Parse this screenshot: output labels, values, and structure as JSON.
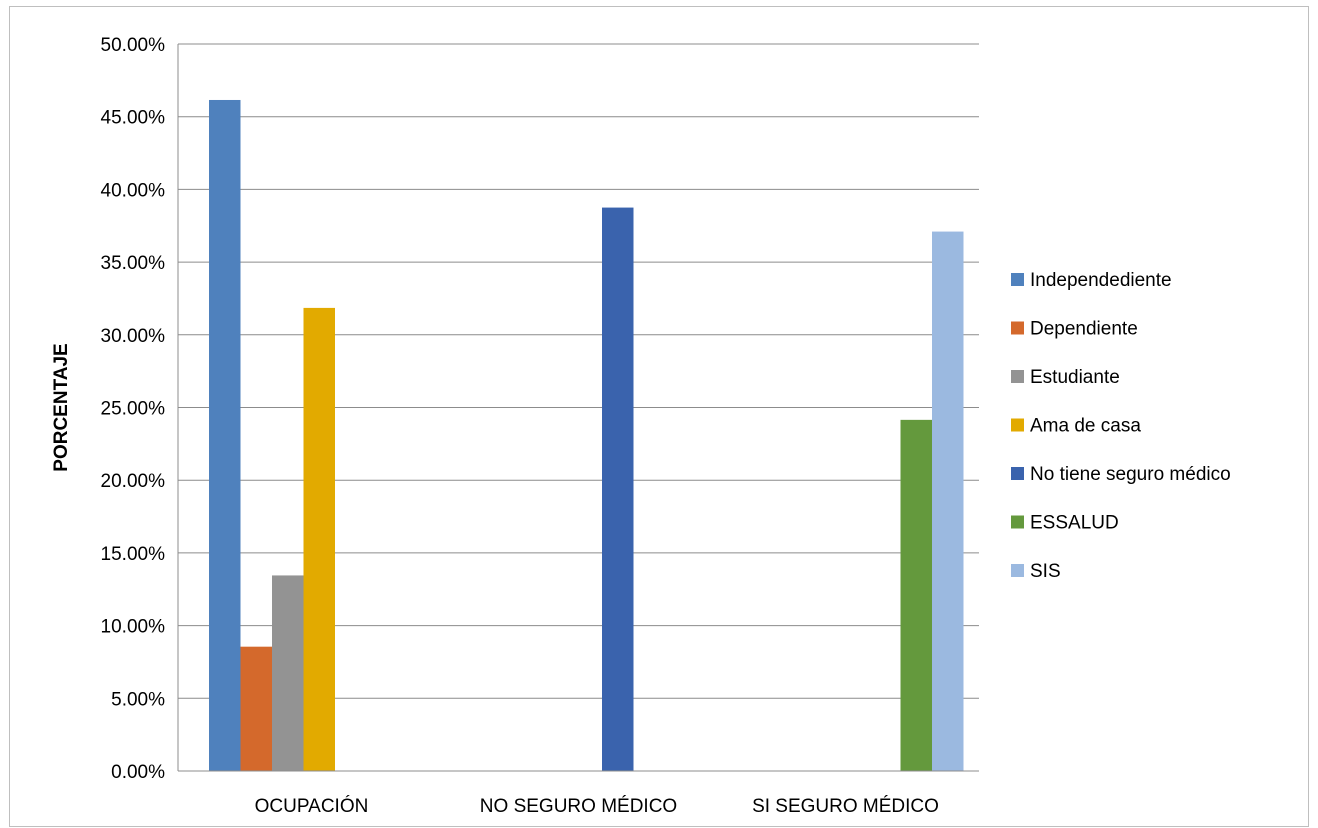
{
  "chart_data": {
    "type": "bar",
    "title": "",
    "xlabel": "",
    "ylabel": "PORCENTAJE",
    "ylim": [
      0,
      0.5
    ],
    "ytick_step": 0.05,
    "ytick_labels": [
      "0.00%",
      "5.00%",
      "10.00%",
      "15.00%",
      "20.00%",
      "25.00%",
      "30.00%",
      "35.00%",
      "40.00%",
      "45.00%",
      "50.00%"
    ],
    "grid": true,
    "legend_position": "right",
    "categories": [
      "OCUPACIÓN",
      "NO SEGURO MÉDICO",
      "SI SEGURO MÉDICO"
    ],
    "series": [
      {
        "name": "Independediente",
        "color": "#4f81bd",
        "values": [
          0.4615,
          null,
          null
        ]
      },
      {
        "name": "Dependiente",
        "color": "#d4692c",
        "values": [
          0.0855,
          null,
          null
        ]
      },
      {
        "name": "Estudiante",
        "color": "#939393",
        "values": [
          0.1345,
          null,
          null
        ]
      },
      {
        "name": "Ama de casa",
        "color": "#e2aa00",
        "values": [
          0.3185,
          null,
          null
        ]
      },
      {
        "name": "No tiene seguro médico",
        "color": "#3a63ad",
        "values": [
          null,
          0.3875,
          null
        ]
      },
      {
        "name": "ESSALUD",
        "color": "#64993d",
        "values": [
          null,
          null,
          0.2415
        ]
      },
      {
        "name": "SIS",
        "color": "#9bb9e0",
        "values": [
          null,
          null,
          0.371
        ]
      }
    ]
  }
}
